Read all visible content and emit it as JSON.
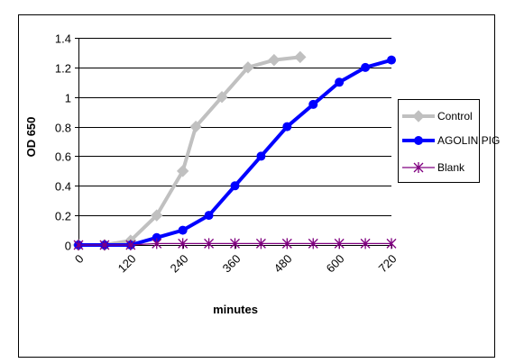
{
  "chart_data": {
    "type": "line",
    "title": "",
    "xlabel": "minutes",
    "ylabel": "OD 650",
    "xlim": [
      0,
      720
    ],
    "ylim": [
      0,
      1.4
    ],
    "y_ticks": [
      0,
      0.2,
      0.4,
      0.6,
      0.8,
      1,
      1.2,
      1.4
    ],
    "y_tick_labels": [
      "0",
      "0.2",
      "0.4",
      "0.6",
      "0.8",
      "1",
      "1.2",
      "1.4"
    ],
    "x_ticks": [
      0,
      120,
      240,
      360,
      480,
      600,
      720
    ],
    "x_tick_labels": [
      "0",
      "120",
      "240",
      "360",
      "480",
      "600",
      "720"
    ],
    "grid": "horizontal",
    "legend_position": "right",
    "series": [
      {
        "name": "Control",
        "color": "#c0c0c0",
        "marker": "diamond",
        "points": [
          [
            0,
            0
          ],
          [
            60,
            0
          ],
          [
            120,
            0.03
          ],
          [
            180,
            0.2
          ],
          [
            240,
            0.5
          ],
          [
            270,
            0.8
          ],
          [
            330,
            1.0
          ],
          [
            390,
            1.2
          ],
          [
            450,
            1.25
          ],
          [
            510,
            1.27
          ]
        ]
      },
      {
        "name": "AGOLIN PIG",
        "color": "#0000ff",
        "marker": "circle",
        "points": [
          [
            0,
            0
          ],
          [
            60,
            0
          ],
          [
            120,
            0
          ],
          [
            180,
            0.05
          ],
          [
            240,
            0.1
          ],
          [
            300,
            0.2
          ],
          [
            360,
            0.4
          ],
          [
            420,
            0.6
          ],
          [
            480,
            0.8
          ],
          [
            540,
            0.95
          ],
          [
            600,
            1.1
          ],
          [
            660,
            1.2
          ],
          [
            720,
            1.25
          ]
        ]
      },
      {
        "name": "Blank",
        "color": "#800080",
        "marker": "asterisk",
        "points": [
          [
            0,
            0
          ],
          [
            60,
            0
          ],
          [
            120,
            0
          ],
          [
            180,
            0.01
          ],
          [
            240,
            0.01
          ],
          [
            300,
            0.01
          ],
          [
            360,
            0.01
          ],
          [
            420,
            0.01
          ],
          [
            480,
            0.01
          ],
          [
            540,
            0.01
          ],
          [
            600,
            0.01
          ],
          [
            660,
            0.01
          ],
          [
            720,
            0.01
          ]
        ]
      }
    ]
  }
}
